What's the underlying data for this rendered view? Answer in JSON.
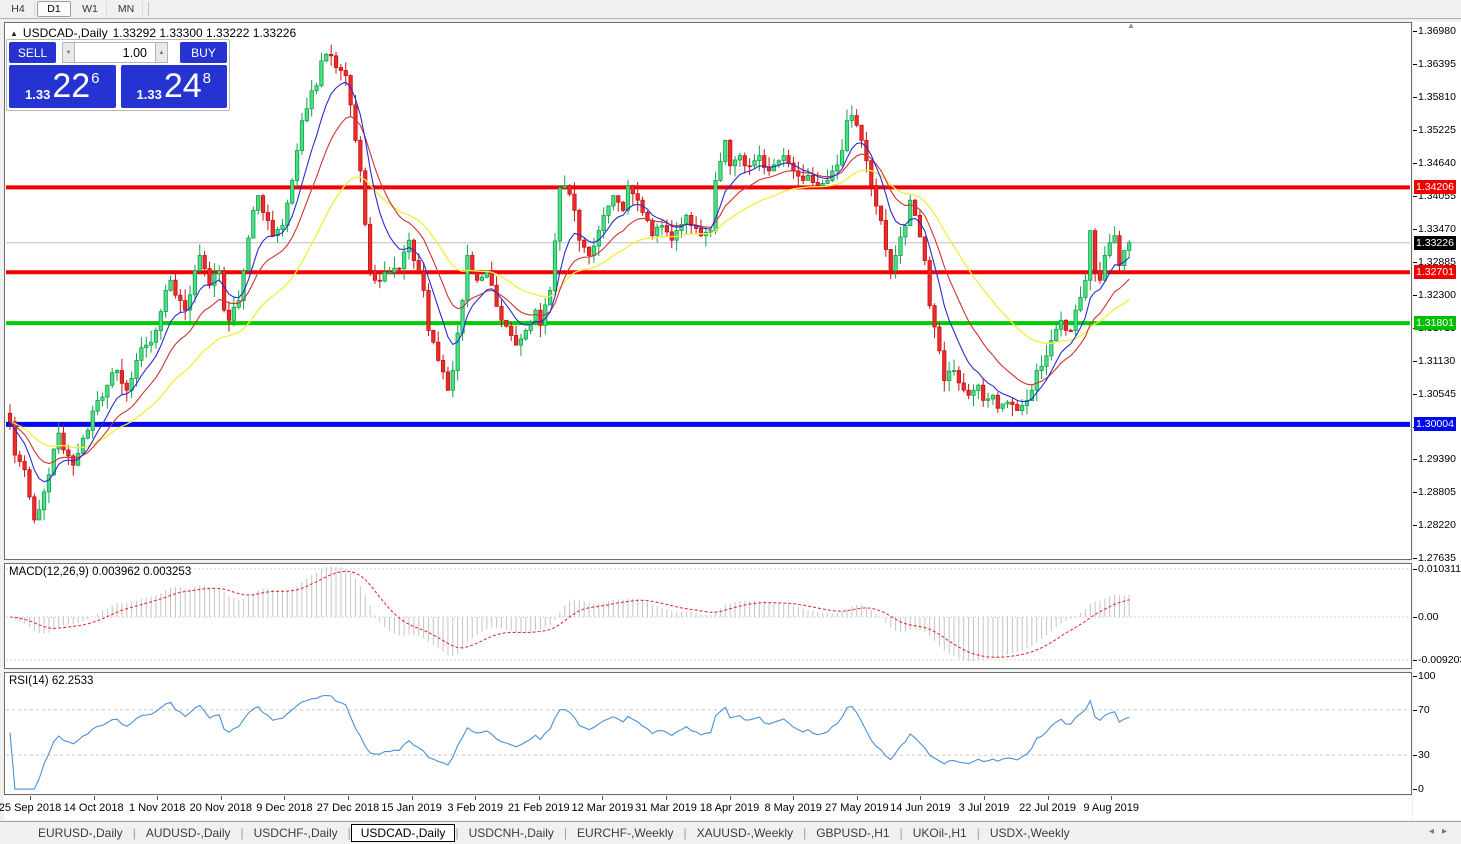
{
  "toolbar": {
    "timeframes": [
      {
        "label": "H4",
        "active": false
      },
      {
        "label": "D1",
        "active": true
      },
      {
        "label": "W1",
        "active": false
      },
      {
        "label": "MN",
        "active": false
      }
    ]
  },
  "icons": {
    "collapse_chart": "▲",
    "volume_down": "▼",
    "volume_up": "▲",
    "end_marker": "▲",
    "tab_scroll_left": "◂",
    "tab_scroll_right": "▸"
  },
  "chart_header": {
    "symbol": "USDCAD-,Daily",
    "ohlc_text": "1.33292 1.33300 1.33222 1.33226"
  },
  "trade_panel": {
    "sell_label": "SELL",
    "buy_label": "BUY",
    "volume": "1.00",
    "sell_small": "1.33",
    "sell_big": "22",
    "sell_sup": "6",
    "buy_small": "1.33",
    "buy_big": "24",
    "buy_sup": "8"
  },
  "indicators": {
    "macd_title": "MACD(12,26,9) 0.003962 0.003253",
    "rsi_title": "RSI(14) 62.2533"
  },
  "chart_data": {
    "type": "candlestick",
    "symbol": "USDCAD-,Daily",
    "timeframe": "Daily",
    "ylim": [
      1.27635,
      1.3698
    ],
    "price_axis_ticks": [
      "1.36980",
      "1.36395",
      "1.35810",
      "1.35225",
      "1.34640",
      "1.34055",
      "1.33470",
      "1.32885",
      "1.32300",
      "1.31715",
      "1.31130",
      "1.30545",
      "1.29960",
      "1.29390",
      "1.28805",
      "1.28220",
      "1.27635"
    ],
    "x_labels": [
      "25 Sep 2018",
      "14 Oct 2018",
      "1 Nov 2018",
      "20 Nov 2018",
      "9 Dec 2018",
      "27 Dec 2018",
      "15 Jan 2019",
      "3 Feb 2019",
      "21 Feb 2019",
      "12 Mar 2019",
      "31 Mar 2019",
      "18 Apr 2019",
      "8 May 2019",
      "27 May 2019",
      "14 Jun 2019",
      "3 Jul 2019",
      "22 Jul 2019",
      "9 Aug 2019"
    ],
    "candle_count": 231,
    "colors": {
      "bull_fill": "#49e084",
      "bull_stroke": "#12a04c",
      "bear_fill": "#ee2b2b",
      "bear_stroke": "#c41414",
      "ma_fast": "#2b2bd0",
      "ma_mid": "#d03232",
      "ma_slow": "#f2ee3a",
      "current_price_line": "#bdbdbd"
    },
    "price_anchors": [
      [
        0,
        1.3005
      ],
      [
        1,
        1.2946
      ],
      [
        3,
        1.292
      ],
      [
        5,
        1.2831
      ],
      [
        6,
        1.2849
      ],
      [
        8,
        1.2911
      ],
      [
        10,
        1.2985
      ],
      [
        11,
        1.2955
      ],
      [
        13,
        1.2928
      ],
      [
        16,
        1.299
      ],
      [
        18,
        1.3043
      ],
      [
        20,
        1.307
      ],
      [
        22,
        1.3096
      ],
      [
        24,
        1.3061
      ],
      [
        26,
        1.3114
      ],
      [
        28,
        1.3141
      ],
      [
        30,
        1.3167
      ],
      [
        32,
        1.3238
      ],
      [
        33,
        1.3256
      ],
      [
        35,
        1.322
      ],
      [
        36,
        1.3203
      ],
      [
        38,
        1.3273
      ],
      [
        39,
        1.33
      ],
      [
        41,
        1.3247
      ],
      [
        43,
        1.3273
      ],
      [
        44,
        1.3203
      ],
      [
        45,
        1.3185
      ],
      [
        47,
        1.322
      ],
      [
        48,
        1.3273
      ],
      [
        50,
        1.338
      ],
      [
        51,
        1.3406
      ],
      [
        53,
        1.3362
      ],
      [
        54,
        1.3335
      ],
      [
        56,
        1.3353
      ],
      [
        58,
        1.3433
      ],
      [
        59,
        1.3486
      ],
      [
        60,
        1.3539
      ],
      [
        62,
        1.3592
      ],
      [
        63,
        1.3601
      ],
      [
        64,
        1.3645
      ],
      [
        66,
        1.3654
      ],
      [
        68,
        1.3628
      ],
      [
        69,
        1.3619
      ],
      [
        71,
        1.3504
      ],
      [
        72,
        1.345
      ],
      [
        74,
        1.3273
      ],
      [
        75,
        1.3256
      ],
      [
        77,
        1.327
      ],
      [
        78,
        1.327
      ],
      [
        80,
        1.3277
      ],
      [
        82,
        1.3327
      ],
      [
        83,
        1.3291
      ],
      [
        85,
        1.3238
      ],
      [
        86,
        1.3167
      ],
      [
        88,
        1.3114
      ],
      [
        90,
        1.3061
      ],
      [
        91,
        1.3096
      ],
      [
        93,
        1.322
      ],
      [
        94,
        1.33
      ],
      [
        96,
        1.3256
      ],
      [
        98,
        1.3273
      ],
      [
        99,
        1.3247
      ],
      [
        101,
        1.3185
      ],
      [
        103,
        1.3158
      ],
      [
        104,
        1.3141
      ],
      [
        106,
        1.3167
      ],
      [
        108,
        1.3203
      ],
      [
        109,
        1.3176
      ],
      [
        111,
        1.3238
      ],
      [
        113,
        1.342
      ],
      [
        114,
        1.3424
      ],
      [
        116,
        1.338
      ],
      [
        117,
        1.3327
      ],
      [
        119,
        1.33
      ],
      [
        121,
        1.3344
      ],
      [
        122,
        1.3371
      ],
      [
        124,
        1.3406
      ],
      [
        126,
        1.338
      ],
      [
        127,
        1.3424
      ],
      [
        129,
        1.3398
      ],
      [
        131,
        1.3362
      ],
      [
        132,
        1.3335
      ],
      [
        134,
        1.3353
      ],
      [
        136,
        1.3327
      ],
      [
        137,
        1.3344
      ],
      [
        139,
        1.3371
      ],
      [
        140,
        1.3353
      ],
      [
        142,
        1.3335
      ],
      [
        144,
        1.3344
      ],
      [
        145,
        1.3433
      ],
      [
        147,
        1.3504
      ],
      [
        148,
        1.3459
      ],
      [
        150,
        1.3477
      ],
      [
        151,
        1.3459
      ],
      [
        153,
        1.3468
      ],
      [
        154,
        1.3477
      ],
      [
        156,
        1.345
      ],
      [
        158,
        1.3468
      ],
      [
        159,
        1.3477
      ],
      [
        161,
        1.345
      ],
      [
        163,
        1.3433
      ],
      [
        164,
        1.3442
      ],
      [
        166,
        1.3424
      ],
      [
        168,
        1.3433
      ],
      [
        169,
        1.345
      ],
      [
        171,
        1.3486
      ],
      [
        172,
        1.3539
      ],
      [
        173,
        1.3548
      ],
      [
        175,
        1.3504
      ],
      [
        176,
        1.3468
      ],
      [
        177,
        1.3424
      ],
      [
        179,
        1.3362
      ],
      [
        181,
        1.3273
      ],
      [
        182,
        1.33
      ],
      [
        184,
        1.3353
      ],
      [
        185,
        1.3398
      ],
      [
        186,
        1.3371
      ],
      [
        188,
        1.3291
      ],
      [
        189,
        1.3211
      ],
      [
        191,
        1.3131
      ],
      [
        192,
        1.3078
      ],
      [
        194,
        1.3096
      ],
      [
        196,
        1.3061
      ],
      [
        197,
        1.3052
      ],
      [
        199,
        1.307
      ],
      [
        200,
        1.3043
      ],
      [
        202,
        1.3052
      ],
      [
        203,
        1.3029
      ],
      [
        205,
        1.304
      ],
      [
        207,
        1.3025
      ],
      [
        208,
        1.3034
      ],
      [
        210,
        1.3061
      ],
      [
        211,
        1.3096
      ],
      [
        213,
        1.3122
      ],
      [
        214,
        1.3149
      ],
      [
        216,
        1.3185
      ],
      [
        218,
        1.3167
      ],
      [
        219,
        1.3203
      ],
      [
        221,
        1.3256
      ],
      [
        222,
        1.3344
      ],
      [
        223,
        1.3273
      ],
      [
        224,
        1.3256
      ],
      [
        225,
        1.33
      ],
      [
        227,
        1.3335
      ],
      [
        228,
        1.3282
      ],
      [
        229,
        1.3309
      ],
      [
        230,
        1.33226
      ]
    ],
    "hlines": [
      {
        "price": 1.34206,
        "label": "1.34206",
        "color": "#f20000",
        "width": 4
      },
      {
        "price": 1.32701,
        "label": "1.32701",
        "color": "#f20000",
        "width": 4
      },
      {
        "price": 1.31801,
        "label": "1.31801",
        "color": "#00cc00",
        "width": 4
      },
      {
        "price": 1.30004,
        "label": "1.30004",
        "color": "#0008f0",
        "width": 5
      }
    ],
    "current_price": {
      "price": 1.33226,
      "label": "1.33226",
      "label_bg": "#000000"
    },
    "macd": {
      "label": "MACD(12,26,9)",
      "main_value": 0.003962,
      "signal_value": 0.003253,
      "fast": 12,
      "slow": 26,
      "signal": 9,
      "axis_labels": [
        "0.010311",
        "0.00",
        "-0.009203"
      ],
      "axis_values": [
        0.010311,
        0.0,
        -0.009203
      ],
      "histogram_color": "#c4c4c4",
      "signal_color": "#e03636"
    },
    "rsi": {
      "label": "RSI(14)",
      "value": 62.2533,
      "period": 14,
      "axis_labels": [
        "100",
        "70",
        "30",
        "0"
      ],
      "axis_values": [
        100,
        70,
        30,
        0
      ],
      "guides": [
        70,
        30
      ],
      "color": "#4a90d9"
    }
  },
  "tabs": {
    "items": [
      {
        "label": "EURUSD-,Daily",
        "active": false
      },
      {
        "label": "AUDUSD-,Daily",
        "active": false
      },
      {
        "label": "USDCHF-,Daily",
        "active": false
      },
      {
        "label": "USDCAD-,Daily",
        "active": true
      },
      {
        "label": "USDCNH-,Daily",
        "active": false
      },
      {
        "label": "EURCHF-,Weekly",
        "active": false
      },
      {
        "label": "XAUUSD-,Weekly",
        "active": false
      },
      {
        "label": "GBPUSD-,H1",
        "active": false
      },
      {
        "label": "UKOil-,H1",
        "active": false
      },
      {
        "label": "USDX-,Weekly",
        "active": false
      }
    ]
  }
}
